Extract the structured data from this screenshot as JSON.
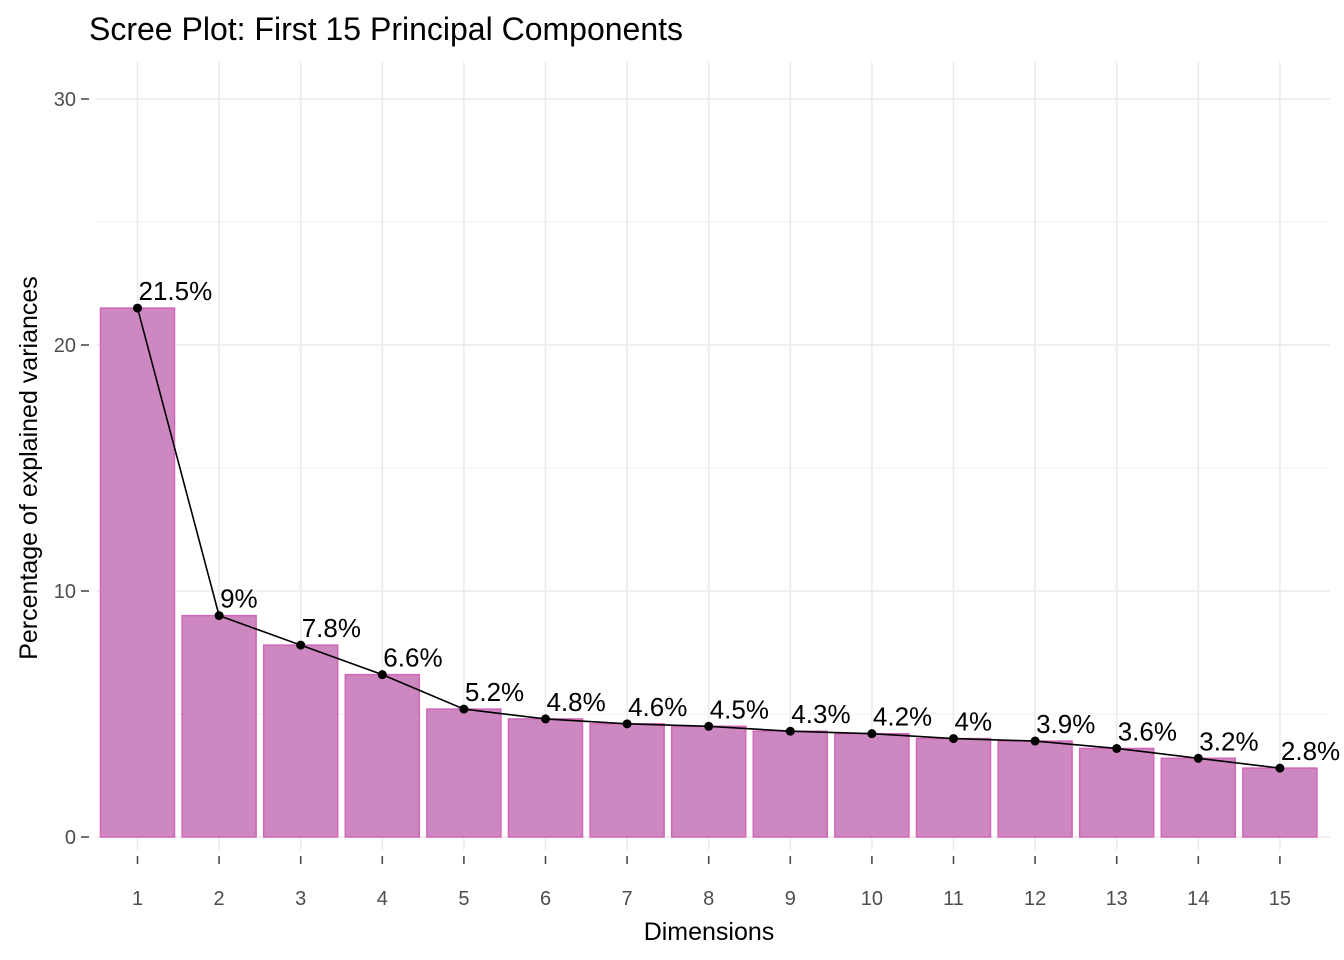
{
  "chart_data": {
    "type": "bar",
    "title": "Scree Plot: First 15 Principal Components",
    "xlabel": "Dimensions",
    "ylabel": "Percentage of explained variances",
    "categories": [
      "1",
      "2",
      "3",
      "4",
      "5",
      "6",
      "7",
      "8",
      "9",
      "10",
      "11",
      "12",
      "13",
      "14",
      "15"
    ],
    "values": [
      21.5,
      9.0,
      7.8,
      6.6,
      5.2,
      4.8,
      4.6,
      4.5,
      4.3,
      4.2,
      4.0,
      3.9,
      3.6,
      3.2,
      2.8
    ],
    "labels": [
      "21.5%",
      "9%",
      "7.8%",
      "6.6%",
      "5.2%",
      "4.8%",
      "4.6%",
      "4.5%",
      "4.3%",
      "4.2%",
      "4%",
      "3.9%",
      "3.6%",
      "3.2%",
      "2.8%"
    ],
    "ylim": [
      0,
      30
    ],
    "yticks": [
      0,
      10,
      20,
      30
    ],
    "grid": true,
    "overlay_line": true,
    "colors": {
      "bar_fill": "#cd88c1",
      "bar_stroke": "#d266b8",
      "line": "#000000",
      "point": "#000000"
    }
  }
}
